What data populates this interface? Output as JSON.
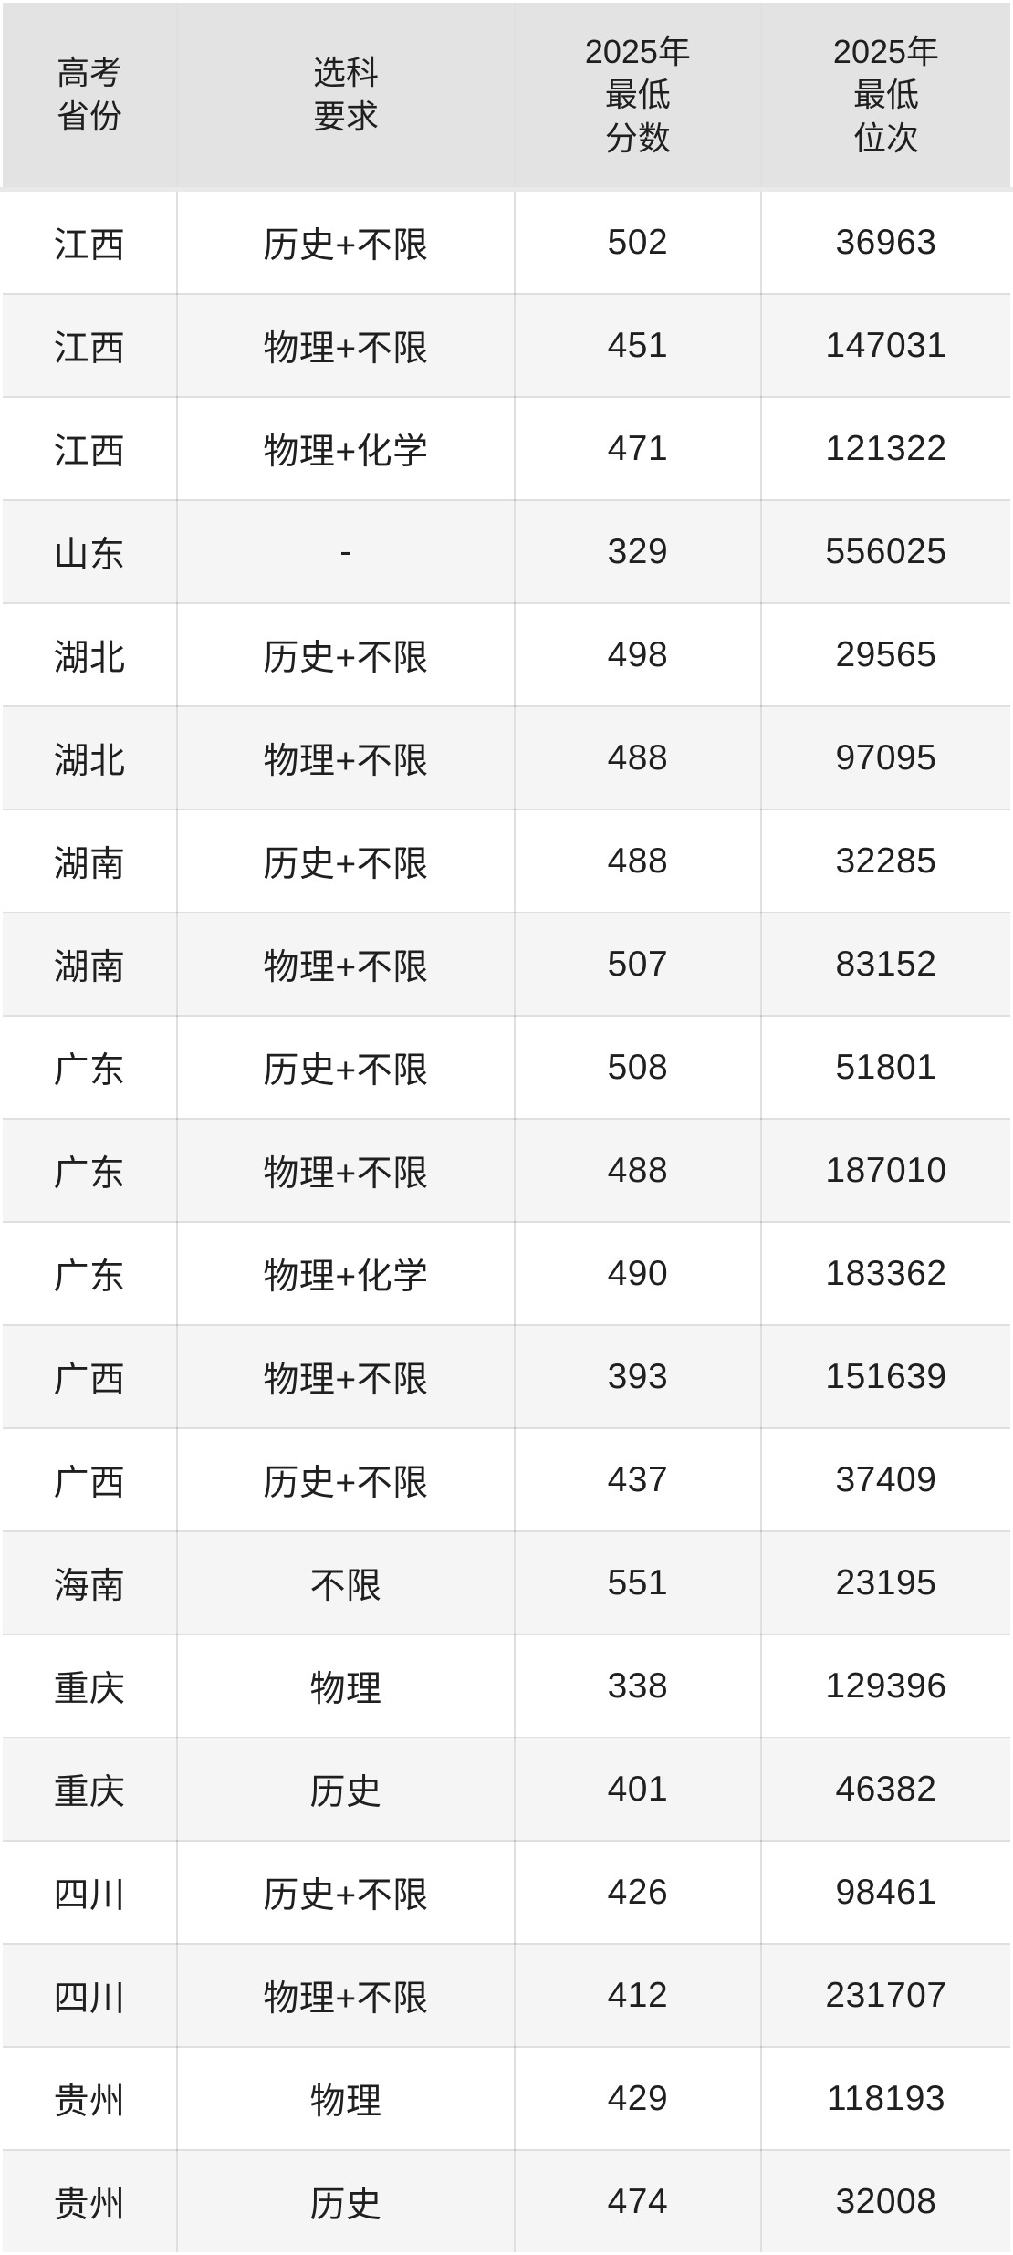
{
  "chart_data": {
    "type": "table",
    "columns": [
      "高考省份",
      "选科要求",
      "2025年最低分数",
      "2025年最低位次"
    ],
    "header_lines": [
      "高考\n省份",
      "选科\n要求",
      "2025年\n最低\n分数",
      "2025年\n最低\n位次"
    ],
    "rows": [
      [
        "江西",
        "历史+不限",
        502,
        36963
      ],
      [
        "江西",
        "物理+不限",
        451,
        147031
      ],
      [
        "江西",
        "物理+化学",
        471,
        121322
      ],
      [
        "山东",
        "-",
        329,
        556025
      ],
      [
        "湖北",
        "历史+不限",
        498,
        29565
      ],
      [
        "湖北",
        "物理+不限",
        488,
        97095
      ],
      [
        "湖南",
        "历史+不限",
        488,
        32285
      ],
      [
        "湖南",
        "物理+不限",
        507,
        83152
      ],
      [
        "广东",
        "历史+不限",
        508,
        51801
      ],
      [
        "广东",
        "物理+不限",
        488,
        187010
      ],
      [
        "广东",
        "物理+化学",
        490,
        183362
      ],
      [
        "广西",
        "物理+不限",
        393,
        151639
      ],
      [
        "广西",
        "历史+不限",
        437,
        37409
      ],
      [
        "海南",
        "不限",
        551,
        23195
      ],
      [
        "重庆",
        "物理",
        338,
        129396
      ],
      [
        "重庆",
        "历史",
        401,
        46382
      ],
      [
        "四川",
        "历史+不限",
        426,
        98461
      ],
      [
        "四川",
        "物理+不限",
        412,
        231707
      ],
      [
        "贵州",
        "物理",
        429,
        118193
      ],
      [
        "贵州",
        "历史",
        474,
        32008
      ]
    ],
    "layout": {
      "grid": true,
      "zebra_striping": true,
      "text_align": "center"
    }
  },
  "colors": {
    "header_bg": "#e3e3e4",
    "row_bg": "#ffffff",
    "row_alt_bg": "#f5f5f6",
    "grid_line": "rgba(0,0,0,0.12)",
    "outer_border": "#ffffff",
    "text": "#1f1f1f"
  }
}
